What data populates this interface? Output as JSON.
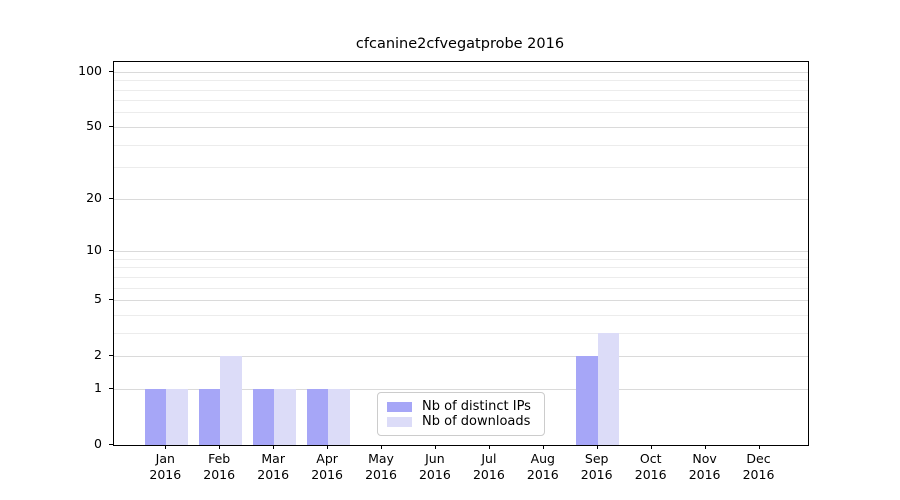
{
  "title": "cfcanine2cfvegatprobe 2016",
  "chart_data": {
    "type": "bar",
    "title": "cfcanine2cfvegatprobe 2016",
    "categories": [
      "Jan 2016",
      "Feb 2016",
      "Mar 2016",
      "Apr 2016",
      "May 2016",
      "Jun 2016",
      "Jul 2016",
      "Aug 2016",
      "Sep 2016",
      "Oct 2016",
      "Nov 2016",
      "Dec 2016"
    ],
    "months": [
      "Jan",
      "Feb",
      "Mar",
      "Apr",
      "May",
      "Jun",
      "Jul",
      "Aug",
      "Sep",
      "Oct",
      "Nov",
      "Dec"
    ],
    "year_label": "2016",
    "series": [
      {
        "name": "Nb of distinct IPs",
        "color": "#a6a6f7",
        "values": [
          1,
          1,
          1,
          1,
          0,
          0,
          0,
          0,
          2,
          0,
          0,
          0
        ]
      },
      {
        "name": "Nb of downloads",
        "color": "#dcdcf8",
        "values": [
          1,
          2,
          1,
          1,
          0,
          0,
          0,
          0,
          3,
          0,
          0,
          0
        ]
      }
    ],
    "xlabel": "",
    "ylabel": "",
    "y_scale": "log1p",
    "ylim": [
      0,
      112
    ],
    "y_ticks": [
      0,
      1,
      2,
      5,
      10,
      20,
      50,
      100
    ],
    "y_minor_gridlines": [
      3,
      4,
      6,
      7,
      8,
      9,
      30,
      40,
      60,
      70,
      80,
      90
    ],
    "grid": "horizontal",
    "legend_position": "lower-center",
    "colors": {
      "spine": "#000000",
      "grid_major": "#dadada",
      "grid_minor": "#ececec",
      "background": "#ffffff"
    }
  }
}
